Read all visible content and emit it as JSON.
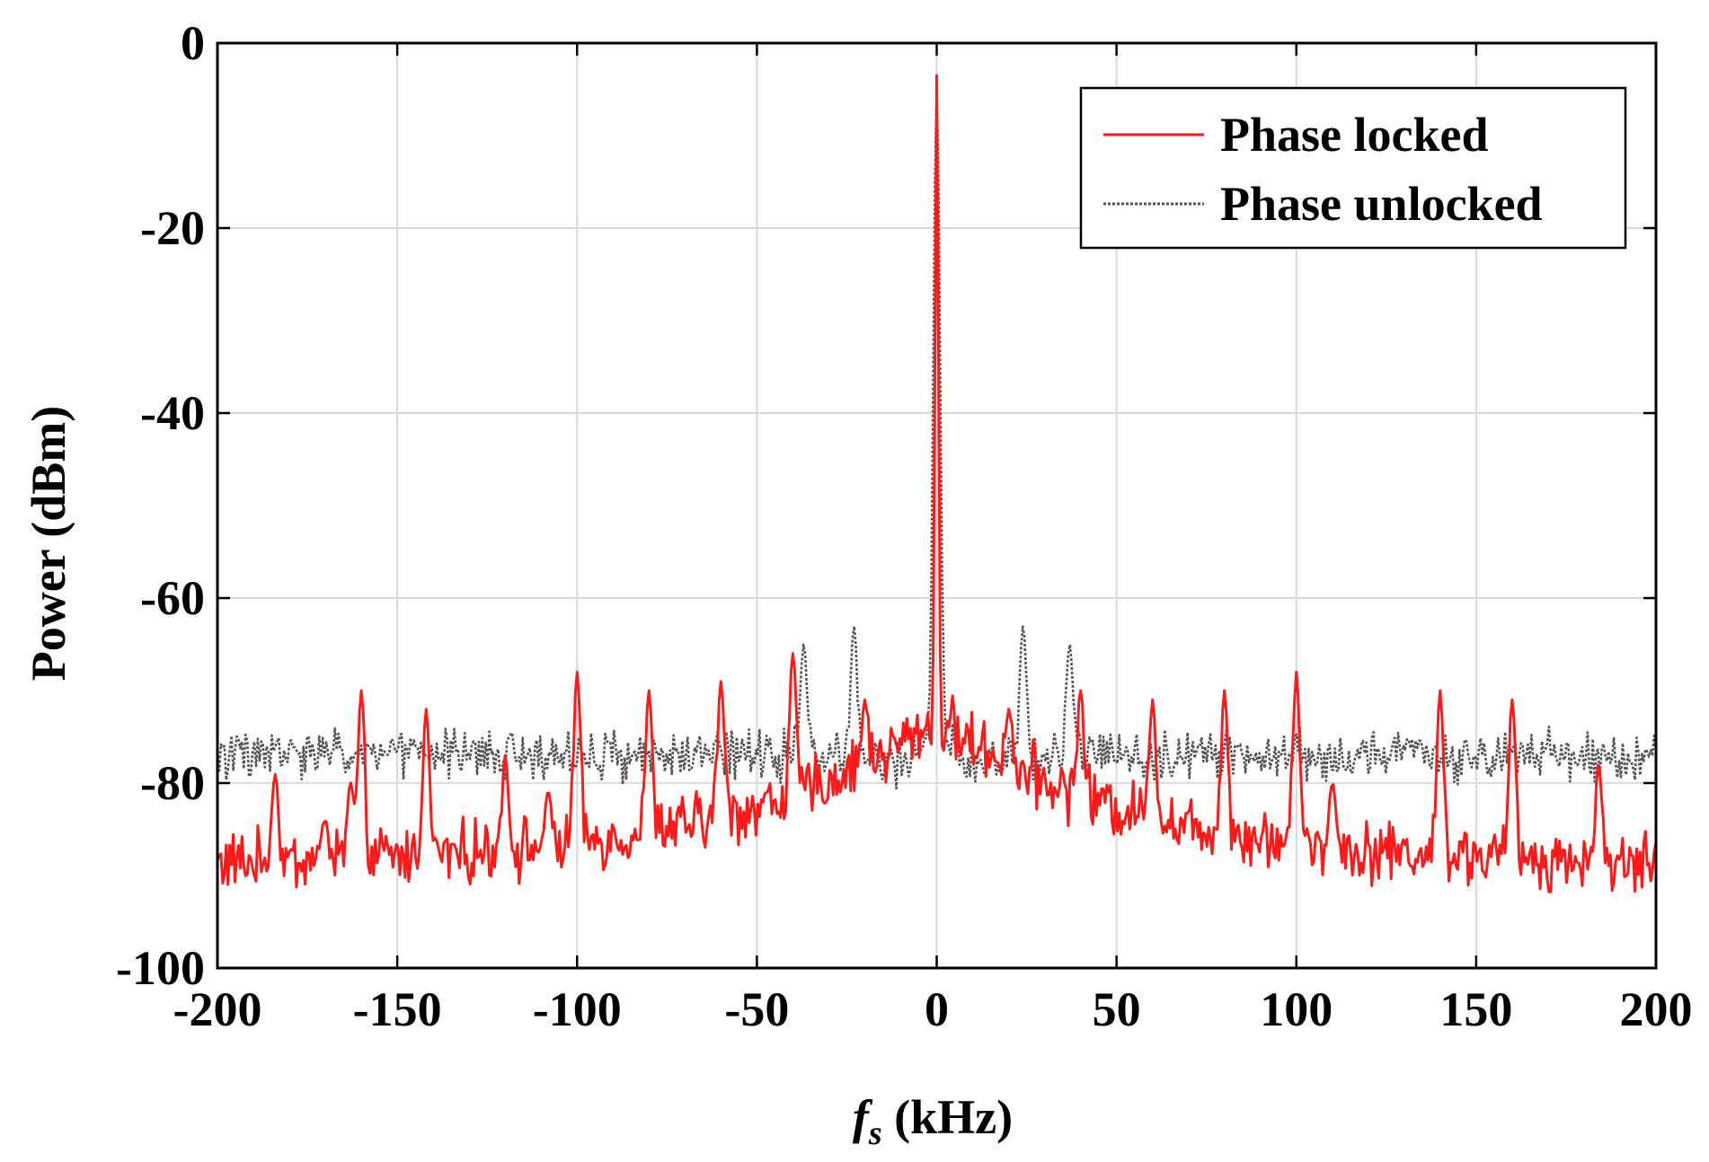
{
  "chart_data": {
    "type": "line",
    "title": "",
    "xlabel_italic": "f",
    "xlabel_sub": "s",
    "xlabel_rest": " (kHz)",
    "ylabel": "Power (dBm)",
    "xlim": [
      -200,
      200
    ],
    "ylim": [
      -100,
      0
    ],
    "xticks": [
      -200,
      -150,
      -100,
      -50,
      0,
      50,
      100,
      150,
      200
    ],
    "yticks": [
      0,
      -20,
      -40,
      -60,
      -80,
      -100
    ],
    "xtick_labels": [
      "-200",
      "-150",
      "-100",
      "-50",
      "0",
      "50",
      "100",
      "150",
      "200"
    ],
    "ytick_labels": [
      "0",
      "-20",
      "-40",
      "-60",
      "-80",
      "-100"
    ],
    "grid": true,
    "legend_position": "top-right",
    "series": [
      {
        "name": "Phase locked",
        "color": "#ff1a1a",
        "style": "solid",
        "base": "locked",
        "peak": {
          "x": 0,
          "y": -3.5
        },
        "spurs": [
          {
            "x": -184,
            "y": -79
          },
          {
            "x": -170,
            "y": -84
          },
          {
            "x": -163,
            "y": -80
          },
          {
            "x": -160,
            "y": -70
          },
          {
            "x": -142,
            "y": -72
          },
          {
            "x": -120,
            "y": -77
          },
          {
            "x": -108,
            "y": -81
          },
          {
            "x": -100,
            "y": -68
          },
          {
            "x": -80,
            "y": -70
          },
          {
            "x": -60,
            "y": -69
          },
          {
            "x": -40,
            "y": -66
          },
          {
            "x": -20,
            "y": -71
          },
          {
            "x": 20,
            "y": -72
          },
          {
            "x": 40,
            "y": -70
          },
          {
            "x": 60,
            "y": -71
          },
          {
            "x": 80,
            "y": -70
          },
          {
            "x": 100,
            "y": -68
          },
          {
            "x": 110,
            "y": -80
          },
          {
            "x": 140,
            "y": -70
          },
          {
            "x": 160,
            "y": -71
          },
          {
            "x": 184,
            "y": -78
          }
        ]
      },
      {
        "name": "Phase unlocked",
        "color": "#555555",
        "style": "dotted",
        "base": "unlocked",
        "peak": {
          "x": 0,
          "y": -5
        },
        "spurs": [
          {
            "x": -158,
            "y": -76
          },
          {
            "x": -145,
            "y": -76
          },
          {
            "x": -120,
            "y": -82
          },
          {
            "x": -98,
            "y": -78
          },
          {
            "x": -84,
            "y": -78
          },
          {
            "x": -37,
            "y": -65
          },
          {
            "x": -23,
            "y": -63
          },
          {
            "x": 24,
            "y": -63
          },
          {
            "x": 37,
            "y": -65
          },
          {
            "x": 84,
            "y": -76
          },
          {
            "x": 98,
            "y": -79
          },
          {
            "x": 120,
            "y": -82
          },
          {
            "x": 145,
            "y": -81
          },
          {
            "x": 158,
            "y": -81
          }
        ]
      }
    ]
  }
}
